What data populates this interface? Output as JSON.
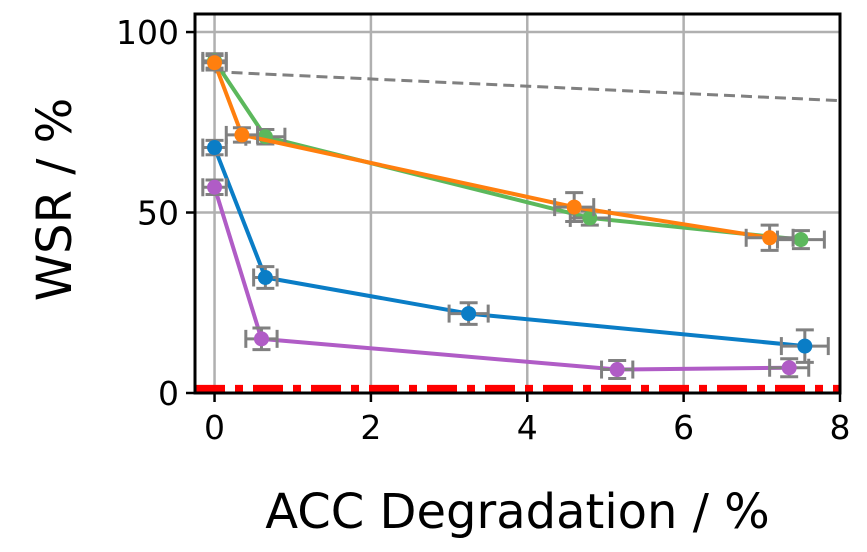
{
  "chart_data": {
    "type": "line",
    "title": "",
    "xlabel": "ACC Degradation / %",
    "ylabel": "WSR / %",
    "xlim": [
      -0.25,
      8
    ],
    "ylim": [
      0,
      105
    ],
    "xticks": [
      0,
      2,
      4,
      6,
      8
    ],
    "yticks": [
      0,
      50,
      100
    ],
    "xtick_labels": [
      "0",
      "2",
      "4",
      "6",
      "8"
    ],
    "ytick_labels": [
      "0",
      "50",
      "100"
    ],
    "grid": true,
    "series": [
      {
        "name": "green",
        "color": "#5cb85c",
        "style": "solid",
        "points": [
          {
            "x": 0.0,
            "y": 92,
            "xerr": 0.15,
            "yerr": 2
          },
          {
            "x": 0.65,
            "y": 71,
            "xerr": 0.25,
            "yerr": 2
          },
          {
            "x": 4.8,
            "y": 48.5,
            "xerr": 0.25,
            "yerr": 2
          },
          {
            "x": 7.5,
            "y": 42.5,
            "xerr": 0.3,
            "yerr": 2.5
          }
        ]
      },
      {
        "name": "orange",
        "color": "#ff7f0e",
        "style": "solid",
        "points": [
          {
            "x": 0.0,
            "y": 91.5,
            "xerr": 0.15,
            "yerr": 2
          },
          {
            "x": 0.35,
            "y": 71.5,
            "xerr": 0.2,
            "yerr": 2
          },
          {
            "x": 4.6,
            "y": 51.5,
            "xerr": 0.25,
            "yerr": 4
          },
          {
            "x": 7.1,
            "y": 43,
            "xerr": 0.3,
            "yerr": 3.5
          }
        ]
      },
      {
        "name": "blue",
        "color": "#0a7dc6",
        "style": "solid",
        "points": [
          {
            "x": 0.0,
            "y": 68,
            "xerr": 0.15,
            "yerr": 2
          },
          {
            "x": 0.65,
            "y": 32,
            "xerr": 0.15,
            "yerr": 3
          },
          {
            "x": 3.25,
            "y": 22,
            "xerr": 0.25,
            "yerr": 3
          },
          {
            "x": 7.55,
            "y": 13,
            "xerr": 0.3,
            "yerr": 4.5
          }
        ]
      },
      {
        "name": "purple",
        "color": "#b05cc6",
        "style": "solid",
        "points": [
          {
            "x": 0.0,
            "y": 57,
            "xerr": 0.15,
            "yerr": 2
          },
          {
            "x": 0.6,
            "y": 15,
            "xerr": 0.2,
            "yerr": 3
          },
          {
            "x": 5.15,
            "y": 6.5,
            "xerr": 0.2,
            "yerr": 2.5
          },
          {
            "x": 7.35,
            "y": 7,
            "xerr": 0.25,
            "yerr": 2.5
          }
        ]
      },
      {
        "name": "gray-reference",
        "color": "#808080",
        "style": "dashed",
        "points": [
          {
            "x": 0.0,
            "y": 89
          },
          {
            "x": 8.0,
            "y": 81
          }
        ]
      },
      {
        "name": "red-baseline",
        "color": "#ff0000",
        "style": "dashdot",
        "points": [
          {
            "x": -0.25,
            "y": 1
          },
          {
            "x": 8.0,
            "y": 1
          }
        ]
      }
    ]
  },
  "colors": {
    "grid": "#b0b0b0",
    "errorbar": "#808080",
    "axis": "#000000"
  }
}
